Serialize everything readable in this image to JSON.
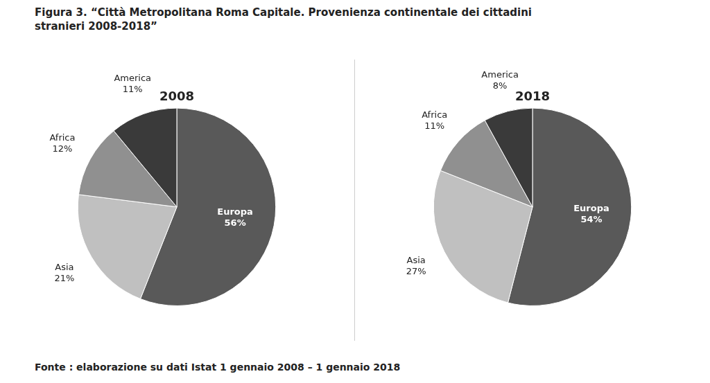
{
  "title": [
    "Figura 3. “Città Metropolitana Roma Capitale. Provenienza continentale dei cittadini",
    "stranieri 2008-2018”"
  ],
  "annotations": [
    "Fonte : elaborazione su dati Istat 1 gennaio 2008 – 1 gennaio 2018"
  ],
  "chart_data": [
    {
      "type": "pie",
      "title": "2008",
      "categories": [
        "Europa",
        "Asia",
        "Africa",
        "America"
      ],
      "values": [
        56,
        21,
        12,
        11
      ],
      "value_labels": [
        "56%",
        "21%",
        "12%",
        "11%"
      ],
      "colors": [
        "#595959",
        "#c0c0c0",
        "#909090",
        "#3a3a3a"
      ],
      "data_labels": true
    },
    {
      "type": "pie",
      "title": "2018",
      "categories": [
        "Europa",
        "Asia",
        "Africa",
        "America"
      ],
      "values": [
        54,
        27,
        11,
        8
      ],
      "value_labels": [
        "54%",
        "27%",
        "11%",
        "8%"
      ],
      "colors": [
        "#595959",
        "#c0c0c0",
        "#909090",
        "#3a3a3a"
      ],
      "data_labels": true
    }
  ]
}
